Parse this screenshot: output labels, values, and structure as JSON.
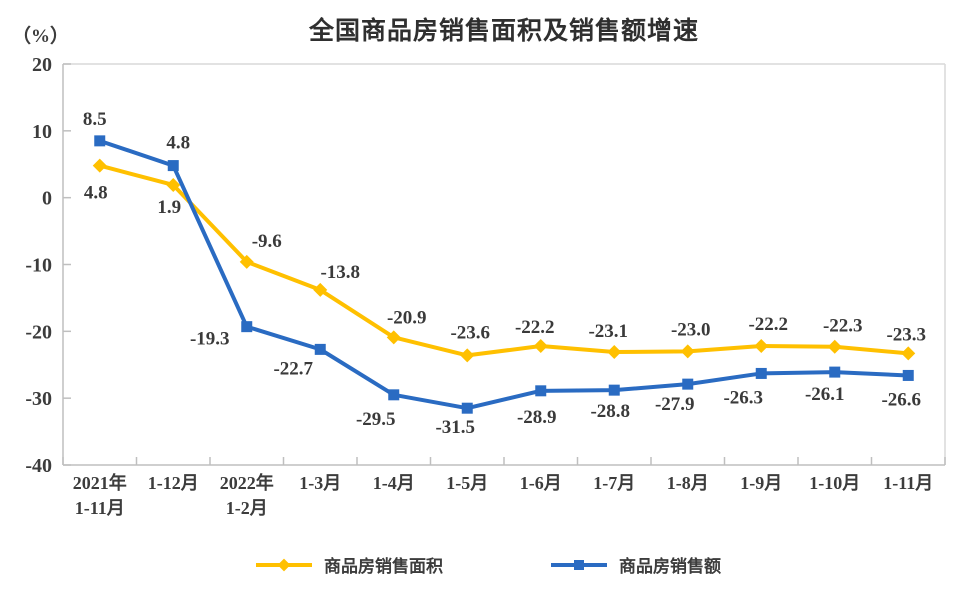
{
  "title": "全国商品房销售面积及销售额增速",
  "unit_label": "（%）",
  "chart_data": {
    "type": "line",
    "categories": [
      "2021年\n1-11月",
      "1-12月",
      "2022年\n1-2月",
      "1-3月",
      "1-4月",
      "1-5月",
      "1-6月",
      "1-7月",
      "1-8月",
      "1-9月",
      "1-10月",
      "1-11月"
    ],
    "ylim": [
      -40,
      20
    ],
    "yticks": [
      20,
      10,
      0,
      -10,
      -20,
      -30,
      -40
    ],
    "grid": false,
    "legend_position": "bottom",
    "axis_color": "#BFBFBF",
    "frame_color": "#D9D9D9",
    "series": [
      {
        "name": "商品房销售面积",
        "color": "#FFC000",
        "marker": "diamond",
        "values": [
          4.8,
          1.9,
          -9.6,
          -13.8,
          -20.9,
          -23.6,
          -22.2,
          -23.1,
          -23.0,
          -22.2,
          -22.3,
          -23.3
        ],
        "labels": [
          "4.8",
          "1.9",
          "-9.6",
          "-13.8",
          "-20.9",
          "-23.6",
          "-22.2",
          "-23.1",
          "-23.0",
          "-22.2",
          "-22.3",
          "-23.3"
        ],
        "label_offsets": [
          [
            -4,
            33
          ],
          [
            -4,
            28
          ],
          [
            20,
            -15
          ],
          [
            20,
            -12
          ],
          [
            13,
            -14
          ],
          [
            3,
            -17
          ],
          [
            -6,
            -13
          ],
          [
            -6,
            -15
          ],
          [
            3,
            -16
          ],
          [
            7,
            -16
          ],
          [
            8,
            -15
          ],
          [
            -2,
            -13
          ]
        ]
      },
      {
        "name": "商品房销售额",
        "color": "#2A6BC2",
        "marker": "square",
        "values": [
          8.5,
          4.8,
          -19.3,
          -22.7,
          -29.5,
          -31.5,
          -28.9,
          -28.8,
          -27.9,
          -26.3,
          -26.1,
          -26.6
        ],
        "labels": [
          "8.5",
          "4.8",
          "-19.3",
          "-22.7",
          "-29.5",
          "-31.5",
          "-28.9",
          "-28.8",
          "-27.9",
          "-26.3",
          "-26.1",
          "-26.6"
        ],
        "label_offsets": [
          [
            -5,
            -16
          ],
          [
            5,
            -17
          ],
          [
            -37,
            18
          ],
          [
            -27,
            25
          ],
          [
            -18,
            30
          ],
          [
            -12,
            25
          ],
          [
            -4,
            32
          ],
          [
            -4,
            27
          ],
          [
            -13,
            26
          ],
          [
            -18,
            30
          ],
          [
            -10,
            28
          ],
          [
            -7,
            30
          ]
        ]
      }
    ],
    "title": "全国商品房销售面积及销售额增速",
    "xlabel": "",
    "ylabel": "（%）"
  },
  "legend": {
    "items": [
      {
        "label": "商品房销售面积",
        "color": "#FFC000",
        "marker": "diamond"
      },
      {
        "label": "商品房销售额",
        "color": "#2A6BC2",
        "marker": "square"
      }
    ]
  }
}
